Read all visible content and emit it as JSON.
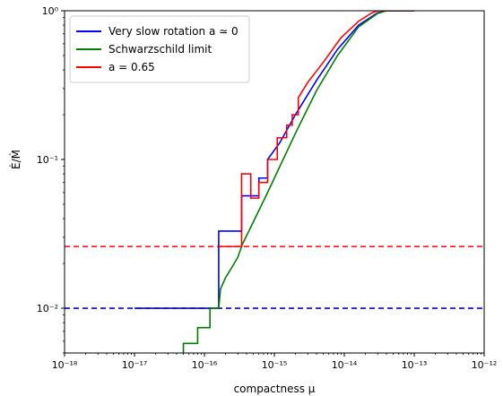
{
  "chart_data": {
    "type": "line",
    "xlabel": "compactness μ",
    "ylabel": "Ė/Ṁ",
    "xscale": "log",
    "yscale": "log",
    "xlim": [
      1e-18,
      1e-12
    ],
    "ylim": [
      0.005,
      1.0
    ],
    "x_tick_labels": [
      "10⁻¹⁸",
      "10⁻¹⁷",
      "10⁻¹⁶",
      "10⁻¹⁵",
      "10⁻¹⁴",
      "10⁻¹³",
      "10⁻¹²"
    ],
    "y_tick_labels": [
      "10⁻²",
      "10⁻¹",
      "10⁰"
    ],
    "grid": false,
    "legend_position": "upper-left",
    "series": [
      {
        "name": "Very slow rotation a ≃ 0",
        "color": "#0000ff",
        "style": "solid",
        "points": [
          [
            1e-17,
            0.01
          ],
          [
            1.6e-16,
            0.01
          ],
          [
            1.6e-16,
            0.033
          ],
          [
            3.4e-16,
            0.033
          ],
          [
            3.4e-16,
            0.057
          ],
          [
            6e-16,
            0.057
          ],
          [
            6e-16,
            0.075
          ],
          [
            8e-16,
            0.075
          ],
          [
            8e-16,
            0.1
          ],
          [
            1.2e-15,
            0.13
          ],
          [
            2e-15,
            0.2
          ],
          [
            4e-15,
            0.34
          ],
          [
            8e-15,
            0.55
          ],
          [
            1.6e-14,
            0.8
          ],
          [
            3e-14,
            0.97
          ],
          [
            4e-14,
            1.0
          ],
          [
            1e-13,
            1.0
          ]
        ]
      },
      {
        "name": "Schwarzschild limit",
        "color": "#008000",
        "style": "solid",
        "points": [
          [
            5e-17,
            0.005
          ],
          [
            5e-17,
            0.0058
          ],
          [
            8e-17,
            0.0058
          ],
          [
            8e-17,
            0.0074
          ],
          [
            1.2e-16,
            0.0074
          ],
          [
            1.2e-16,
            0.01
          ],
          [
            1.6e-16,
            0.01
          ],
          [
            1.7e-16,
            0.0135
          ],
          [
            2e-16,
            0.016
          ],
          [
            2.5e-16,
            0.019
          ],
          [
            3e-16,
            0.022
          ],
          [
            3.5e-16,
            0.027
          ],
          [
            5e-16,
            0.038
          ],
          [
            8e-16,
            0.06
          ],
          [
            1.2e-15,
            0.09
          ],
          [
            2e-15,
            0.15
          ],
          [
            4e-15,
            0.29
          ],
          [
            8e-15,
            0.5
          ],
          [
            1.6e-14,
            0.78
          ],
          [
            3e-14,
            0.96
          ],
          [
            4e-14,
            1.0
          ],
          [
            1e-13,
            1.0
          ]
        ]
      },
      {
        "name": "a = 0.65",
        "color": "#ff0000",
        "style": "solid",
        "points": [
          [
            1.6e-16,
            0.026
          ],
          [
            3.4e-16,
            0.026
          ],
          [
            3.4e-16,
            0.08
          ],
          [
            4.6e-16,
            0.08
          ],
          [
            4.6e-16,
            0.055
          ],
          [
            6e-16,
            0.055
          ],
          [
            6e-16,
            0.07
          ],
          [
            8e-16,
            0.07
          ],
          [
            8e-16,
            0.1
          ],
          [
            1.1e-15,
            0.1
          ],
          [
            1.1e-15,
            0.14
          ],
          [
            1.5e-15,
            0.14
          ],
          [
            1.5e-15,
            0.17
          ],
          [
            1.8e-15,
            0.17
          ],
          [
            1.8e-15,
            0.2
          ],
          [
            2.2e-15,
            0.2
          ],
          [
            2.2e-15,
            0.26
          ],
          [
            3e-15,
            0.33
          ],
          [
            5e-15,
            0.45
          ],
          [
            9e-15,
            0.66
          ],
          [
            1.6e-14,
            0.85
          ],
          [
            2.5e-14,
            0.97
          ],
          [
            3e-14,
            1.0
          ],
          [
            1e-13,
            1.0
          ]
        ]
      },
      {
        "name": "",
        "color": "#ff0000",
        "style": "dashed",
        "points": [
          [
            1e-18,
            0.026
          ],
          [
            1e-12,
            0.026
          ]
        ]
      },
      {
        "name": "",
        "color": "#0000ff",
        "style": "dashed",
        "points": [
          [
            1e-18,
            0.01
          ],
          [
            1e-12,
            0.01
          ]
        ]
      }
    ],
    "legend": [
      {
        "label": "Very slow rotation a ≃ 0",
        "color": "#0000ff"
      },
      {
        "label": "Schwarzschild limit",
        "color": "#008000"
      },
      {
        "label": "a = 0.65",
        "color": "#ff0000"
      }
    ]
  }
}
